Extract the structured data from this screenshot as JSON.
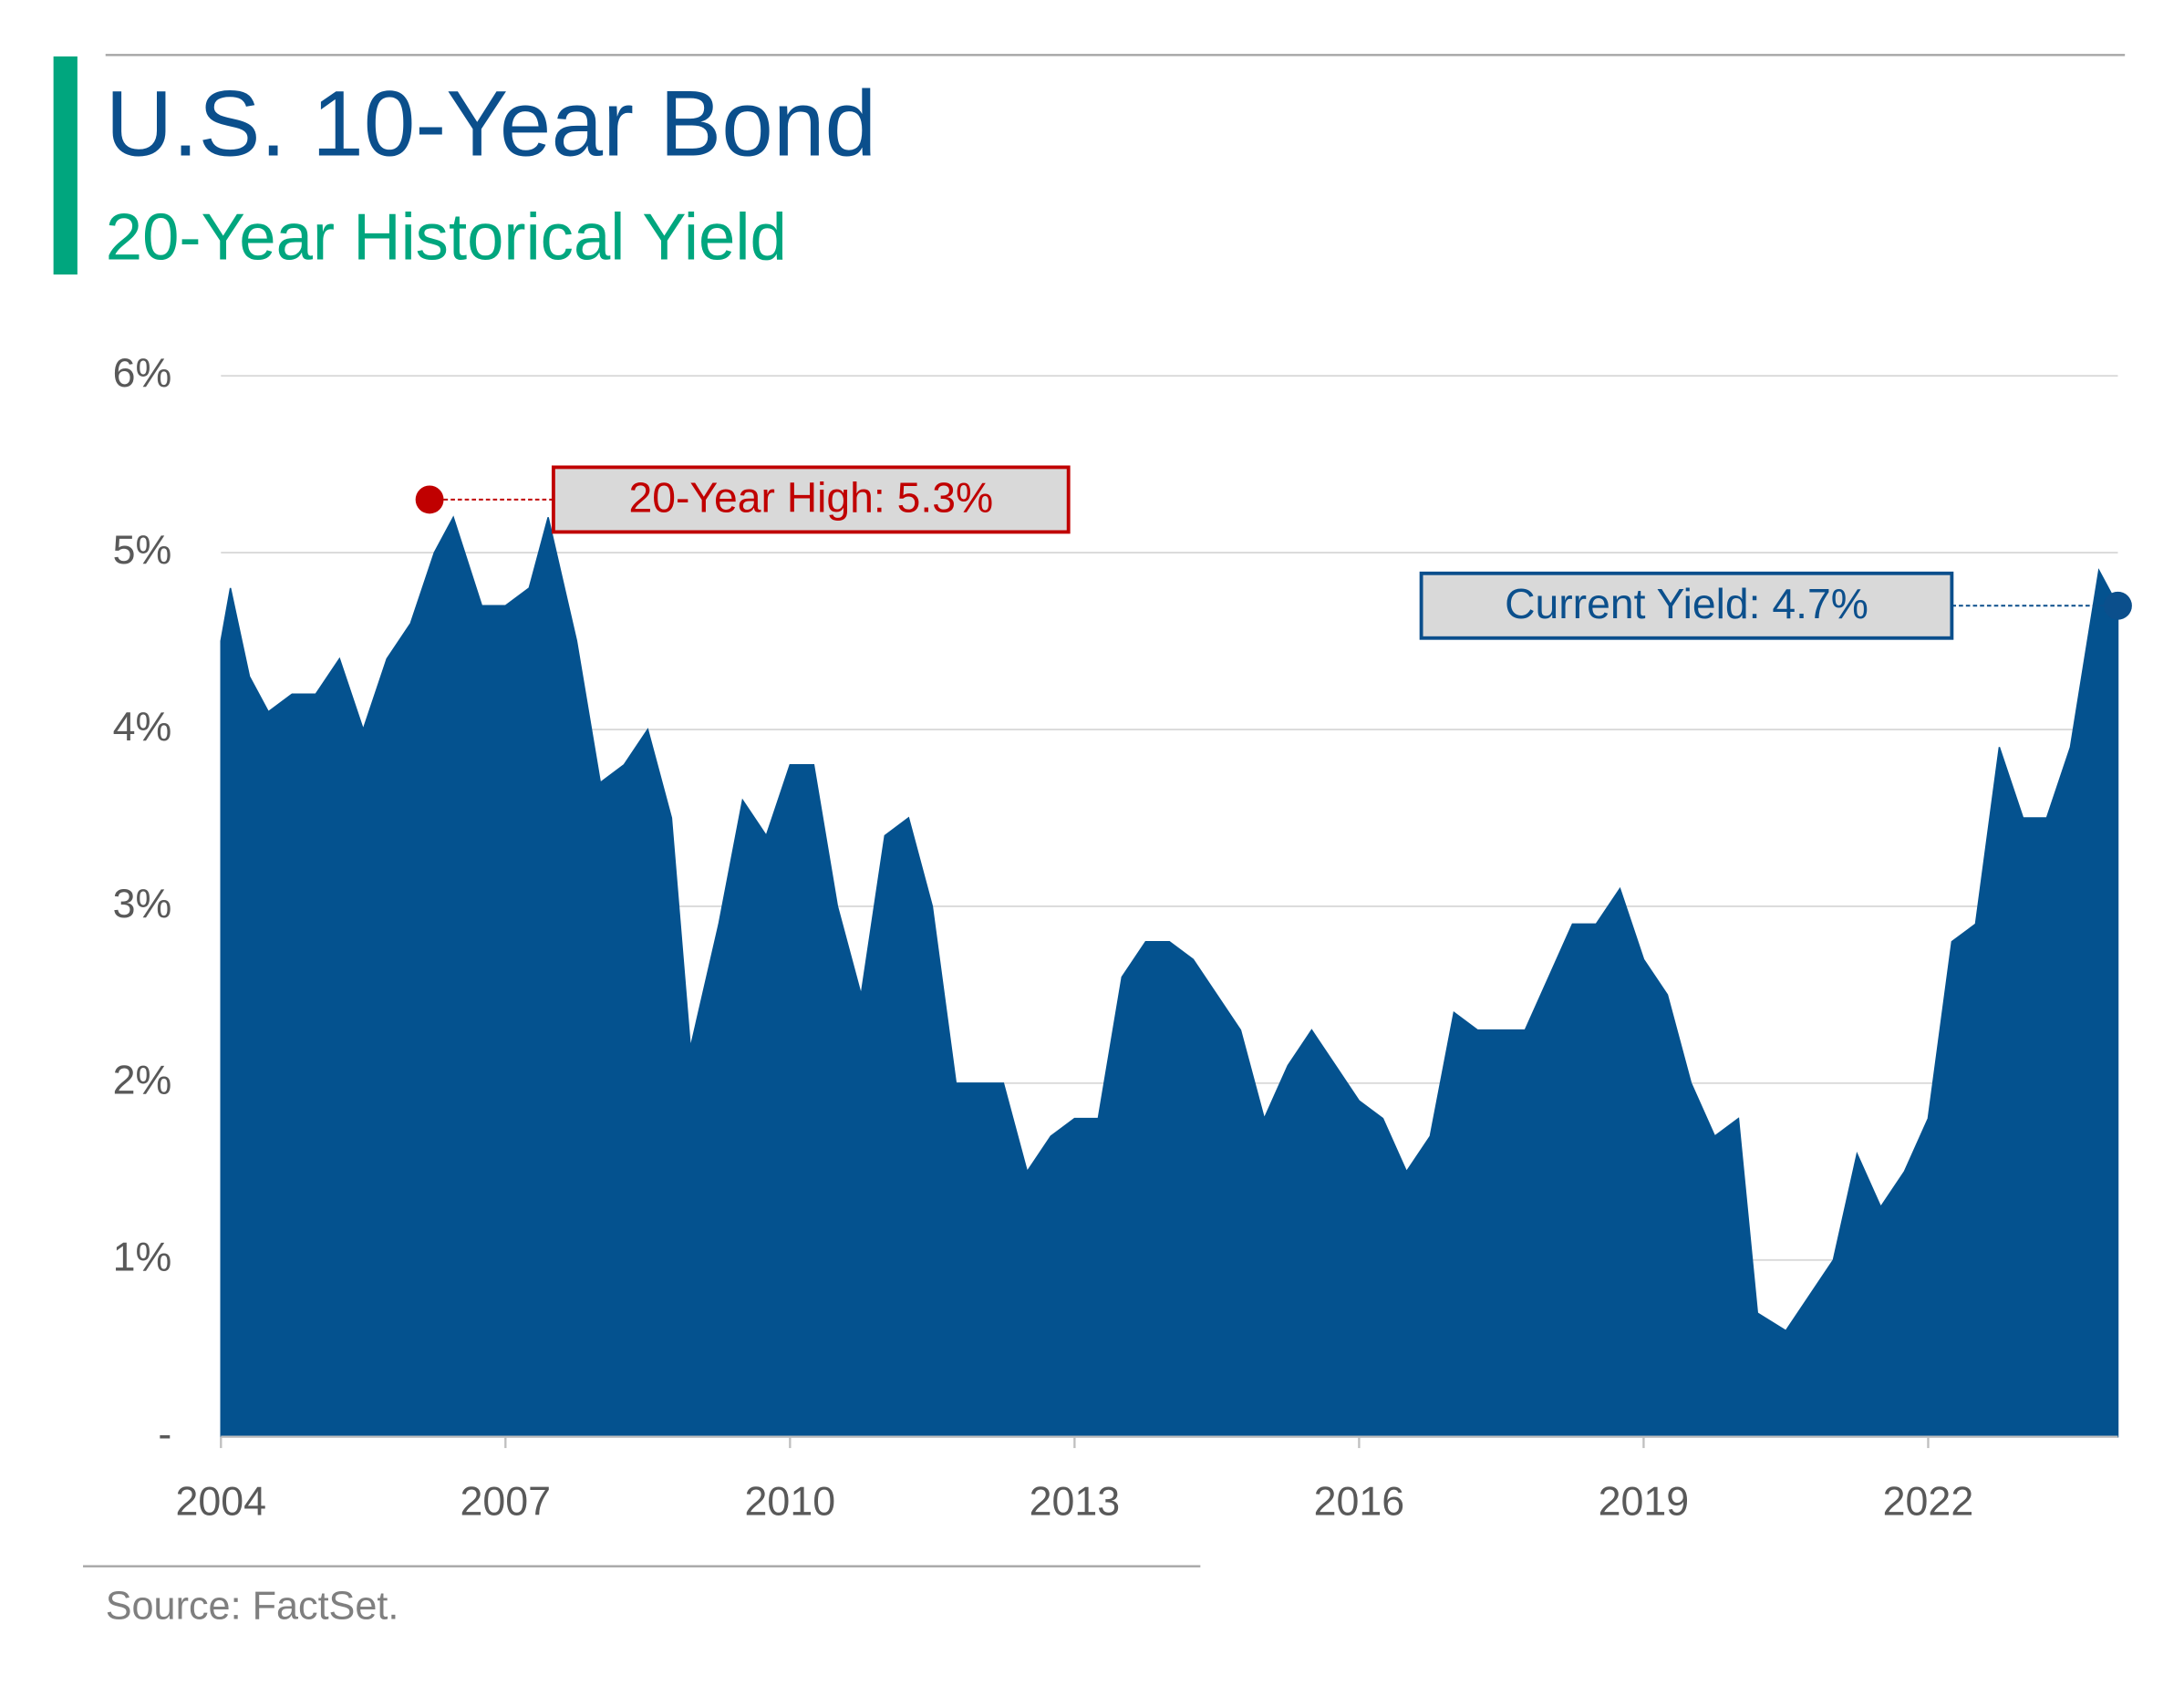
{
  "chart_data": {
    "type": "area",
    "title": "U.S. 10-Year Bond",
    "subtitle": "20-Year Historical Yield",
    "source": "Source: FactSet.",
    "color": "#04528f",
    "grid": true,
    "xlim": [
      2004,
      2024
    ],
    "xticks": [
      2004,
      2007,
      2010,
      2013,
      2016,
      2019,
      2022
    ],
    "ylim": [
      0,
      6
    ],
    "yticks": [
      {
        "value": 0,
        "label": "-"
      },
      {
        "value": 1,
        "label": "1%"
      },
      {
        "value": 2,
        "label": "2%"
      },
      {
        "value": 3,
        "label": "3%"
      },
      {
        "value": 4,
        "label": "4%"
      },
      {
        "value": 5,
        "label": "5%"
      },
      {
        "value": 6,
        "label": "6%"
      }
    ],
    "x": [
      2004.0,
      2004.1,
      2004.3,
      2004.5,
      2004.75,
      2005.0,
      2005.25,
      2005.5,
      2005.75,
      2006.0,
      2006.25,
      2006.45,
      2006.75,
      2007.0,
      2007.25,
      2007.45,
      2007.75,
      2008.0,
      2008.25,
      2008.5,
      2008.75,
      2008.95,
      2009.25,
      2009.5,
      2009.75,
      2010.0,
      2010.25,
      2010.5,
      2010.75,
      2011.0,
      2011.25,
      2011.5,
      2011.75,
      2012.0,
      2012.25,
      2012.5,
      2012.75,
      2013.0,
      2013.25,
      2013.5,
      2013.75,
      2014.0,
      2014.25,
      2014.5,
      2014.75,
      2015.0,
      2015.25,
      2015.5,
      2015.75,
      2016.0,
      2016.25,
      2016.5,
      2016.75,
      2017.0,
      2017.25,
      2017.5,
      2017.75,
      2018.0,
      2018.25,
      2018.5,
      2018.75,
      2019.0,
      2019.25,
      2019.5,
      2019.75,
      2020.0,
      2020.2,
      2020.5,
      2020.75,
      2021.0,
      2021.25,
      2021.5,
      2021.75,
      2022.0,
      2022.25,
      2022.5,
      2022.75,
      2023.0,
      2023.25,
      2023.5,
      2023.8,
      2024.0
    ],
    "values": [
      4.5,
      4.8,
      4.3,
      4.1,
      4.2,
      4.2,
      4.4,
      4.0,
      4.4,
      4.6,
      5.0,
      5.2,
      4.7,
      4.7,
      4.8,
      5.2,
      4.5,
      3.7,
      3.8,
      4.0,
      3.5,
      2.2,
      2.9,
      3.6,
      3.4,
      3.8,
      3.8,
      3.0,
      2.5,
      3.4,
      3.5,
      3.0,
      2.0,
      2.0,
      2.0,
      1.5,
      1.7,
      1.8,
      1.8,
      2.6,
      2.8,
      2.8,
      2.7,
      2.5,
      2.3,
      1.8,
      2.1,
      2.3,
      2.1,
      1.9,
      1.8,
      1.5,
      1.7,
      2.4,
      2.3,
      2.3,
      2.3,
      2.6,
      2.9,
      2.9,
      3.1,
      2.7,
      2.5,
      2.0,
      1.7,
      1.8,
      0.7,
      0.6,
      0.8,
      1.0,
      1.6,
      1.3,
      1.5,
      1.8,
      2.8,
      2.9,
      3.9,
      3.5,
      3.5,
      3.9,
      4.9,
      4.7
    ],
    "annotations": [
      {
        "text": "20-Year High: 5.3%",
        "x": 2006.2,
        "y": 5.3,
        "color": "#c00000"
      },
      {
        "text": "Current Yield: 4.7%",
        "x": 2024,
        "y": 4.7,
        "color": "#0b4f8c"
      }
    ]
  }
}
